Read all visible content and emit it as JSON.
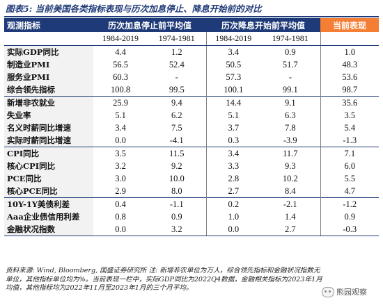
{
  "title": "图表5: 当前美国各类指标表现与历次加息停止、降息开始前的对比",
  "header": {
    "label": "观测指标",
    "group1": "历次加息停止前平均值",
    "group2": "历次降息开始前平均值",
    "current": "当前表现",
    "periods": [
      "1984-2019",
      "1974-1981",
      "1984-2019",
      "1974-1981"
    ]
  },
  "rows": [
    {
      "label": "实际GDP同比",
      "values": [
        "4.4",
        "1.2",
        "3.4",
        "0.9",
        "1.0"
      ]
    },
    {
      "label": "制造业PMI",
      "values": [
        "56.5",
        "52.4",
        "50.5",
        "51.7",
        "48.3"
      ]
    },
    {
      "label": "服务业PMI",
      "values": [
        "60.3",
        "-",
        "57.3",
        "-",
        "53.6"
      ]
    },
    {
      "label": "综合领先指标",
      "values": [
        "100.8",
        "99.5",
        "100.1",
        "99.1",
        "98.7"
      ]
    },
    {
      "label": "新增非农就业",
      "values": [
        "25.9",
        "9.4",
        "14.4",
        "9.1",
        "35.6"
      ]
    },
    {
      "label": "失业率",
      "values": [
        "5.1",
        "6.2",
        "5.1",
        "6.3",
        "3.5"
      ]
    },
    {
      "label": "名义时薪同比增速",
      "values": [
        "3.4",
        "7.5",
        "3.7",
        "7.8",
        "5.4"
      ]
    },
    {
      "label": "实际时薪同比增速",
      "values": [
        "0.0",
        "-4.1",
        "0.3",
        "-3.9",
        "-1.3"
      ]
    },
    {
      "label": "CPI同比",
      "values": [
        "3.5",
        "11.5",
        "3.4",
        "11.7",
        "7.1"
      ]
    },
    {
      "label": "核心CPI同比",
      "values": [
        "3.2",
        "9.2",
        "3.3",
        "9.3",
        "6.0"
      ]
    },
    {
      "label": "PCE同比",
      "values": [
        "3.0",
        "10.0",
        "2.8",
        "10.2",
        "5.5"
      ]
    },
    {
      "label": "核心PCE同比",
      "values": [
        "2.9",
        "8.0",
        "2.7",
        "8.4",
        "4.7"
      ]
    },
    {
      "label": "10Y-1Y美债利差",
      "values": [
        "0.4",
        "-1.1",
        "0.2",
        "-2.1",
        "-1.2"
      ]
    },
    {
      "label": "Aaa企业债信用利差",
      "values": [
        "0.8",
        "0.9",
        "1.0",
        "1.4",
        "0.9"
      ]
    },
    {
      "label": "金融状况指数",
      "values": [
        "0.0",
        "3.2",
        "0.0",
        "2.7",
        "-0.3"
      ]
    }
  ],
  "footnote": "资料来源: Wind, Bloomberg, 国盛证券研究所  注: 新增非农单位为万人，综合领先指标和金融状况指数无单位，其他指标单位均为%。当前表现一栏中，实际GDP同比为2022Q4数据，金融相关指标为2023年1月均值，其他指标均为2022年11月至2023年1月的三个月平均。",
  "brand": "熊园观察"
}
